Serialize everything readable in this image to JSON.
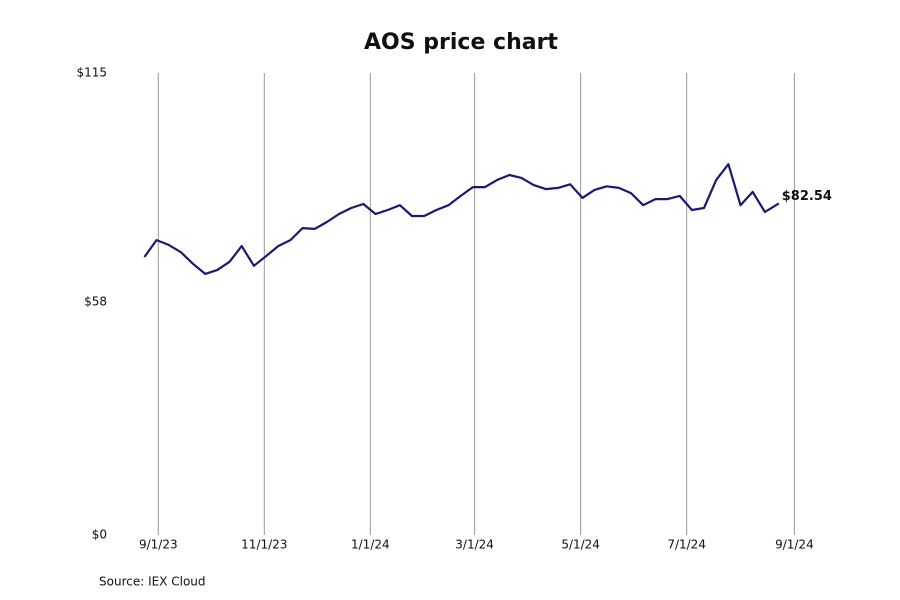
{
  "chart_data": {
    "type": "line",
    "title": "AOS price chart",
    "source": "Source: IEX Cloud",
    "x": [
      "8/24/23",
      "8/31/23",
      "9/7/23",
      "9/14/23",
      "9/21/23",
      "9/28/23",
      "10/5/23",
      "10/12/23",
      "10/19/23",
      "10/26/23",
      "11/2/23",
      "11/9/23",
      "11/16/23",
      "11/23/23",
      "11/30/23",
      "12/7/23",
      "12/14/23",
      "12/21/23",
      "12/28/23",
      "1/4/24",
      "1/11/24",
      "1/18/24",
      "1/25/24",
      "2/1/24",
      "2/8/24",
      "2/15/24",
      "2/22/24",
      "2/29/24",
      "3/7/24",
      "3/14/24",
      "3/21/24",
      "3/28/24",
      "4/4/24",
      "4/11/24",
      "4/18/24",
      "4/25/24",
      "5/2/24",
      "5/9/24",
      "5/16/24",
      "5/23/24",
      "5/30/24",
      "6/6/24",
      "6/13/24",
      "6/20/24",
      "6/27/24",
      "7/4/24",
      "7/11/24",
      "7/18/24",
      "7/25/24",
      "8/1/24",
      "8/8/24",
      "8/15/24",
      "8/23/24"
    ],
    "series": [
      {
        "name": "AOS",
        "color": "#1a1a6e",
        "values": [
          69.2,
          73.4,
          72.2,
          70.4,
          67.5,
          65.0,
          66.0,
          68.0,
          71.9,
          67.0,
          69.4,
          71.9,
          73.4,
          76.4,
          76.2,
          77.9,
          79.9,
          81.4,
          82.4,
          79.9,
          80.9,
          82.1,
          79.4,
          79.4,
          80.9,
          82.1,
          84.4,
          86.6,
          86.6,
          88.4,
          89.6,
          88.9,
          87.1,
          86.1,
          86.4,
          87.3,
          83.9,
          85.9,
          86.8,
          86.4,
          85.1,
          82.1,
          83.6,
          83.6,
          84.4,
          80.9,
          81.4,
          88.4,
          92.3,
          82.1,
          85.4,
          80.4,
          82.54
        ],
        "value_labels": [
          null,
          null,
          null,
          null,
          null,
          null,
          null,
          null,
          null,
          null,
          null,
          null,
          null,
          null,
          null,
          null,
          null,
          null,
          null,
          null,
          null,
          null,
          null,
          null,
          null,
          null,
          null,
          null,
          null,
          null,
          null,
          null,
          null,
          null,
          null,
          null,
          null,
          null,
          null,
          null,
          null,
          null,
          null,
          null,
          null,
          null,
          null,
          null,
          null,
          null,
          null,
          null,
          "$82.54"
        ]
      }
    ],
    "xlim": [
      "8/14/23",
      "9/14/24"
    ],
    "xticks": [
      "9/1/23",
      "11/1/23",
      "1/1/24",
      "3/1/24",
      "5/1/24",
      "7/1/24",
      "9/1/24"
    ],
    "ylim": [
      0,
      115
    ],
    "yticks": [
      {
        "value": 0,
        "label": "$0"
      },
      {
        "value": 58,
        "label": "$58"
      },
      {
        "value": 115,
        "label": "$115"
      }
    ],
    "grid": "x"
  }
}
